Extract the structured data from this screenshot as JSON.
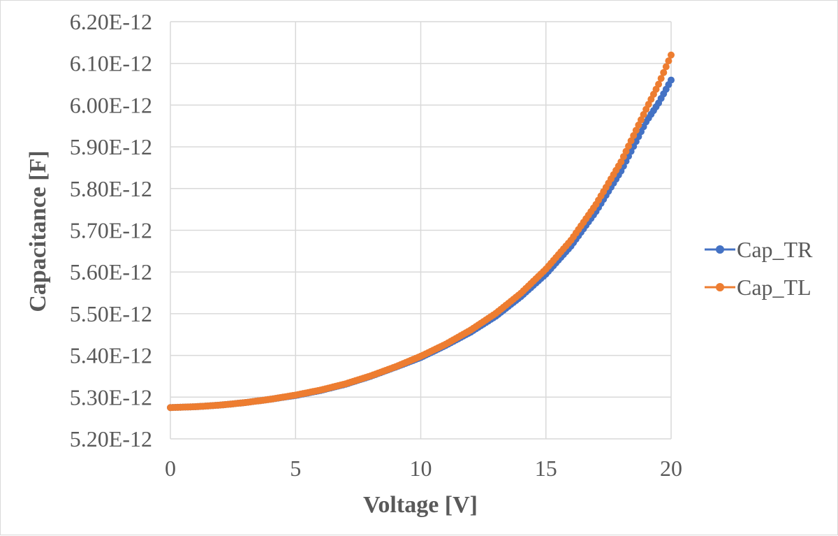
{
  "chart_data": {
    "type": "scatter",
    "title": "",
    "xlabel": "Voltage [V]",
    "ylabel": "Capacitance [F]",
    "xlim": [
      0,
      20
    ],
    "ylim": [
      5.2e-12,
      6.2e-12
    ],
    "grid": true,
    "legend_position": "right",
    "x_ticks": [
      {
        "value": 0,
        "label": "0"
      },
      {
        "value": 5,
        "label": "5"
      },
      {
        "value": 10,
        "label": "10"
      },
      {
        "value": 15,
        "label": "15"
      },
      {
        "value": 20,
        "label": "20"
      }
    ],
    "y_ticks": [
      {
        "value": 5.2e-12,
        "label": "5.20E-12"
      },
      {
        "value": 5.3e-12,
        "label": "5.30E-12"
      },
      {
        "value": 5.4e-12,
        "label": "5.40E-12"
      },
      {
        "value": 5.5e-12,
        "label": "5.50E-12"
      },
      {
        "value": 5.6e-12,
        "label": "5.60E-12"
      },
      {
        "value": 5.7e-12,
        "label": "5.70E-12"
      },
      {
        "value": 5.8e-12,
        "label": "5.80E-12"
      },
      {
        "value": 5.9e-12,
        "label": "5.90E-12"
      },
      {
        "value": 6e-12,
        "label": "6.00E-12"
      },
      {
        "value": 6.1e-12,
        "label": "6.10E-12"
      },
      {
        "value": 6.2e-12,
        "label": "6.20E-12"
      }
    ],
    "series": [
      {
        "name": "Cap_TR",
        "color": "#4472C4",
        "x": [
          0,
          1,
          2,
          3,
          4,
          5,
          6,
          7,
          8,
          9,
          10,
          11,
          12,
          13,
          14,
          15,
          16,
          17,
          18,
          19,
          19.5,
          20
        ],
        "y": [
          5.275e-12,
          5.277e-12,
          5.281e-12,
          5.287e-12,
          5.295e-12,
          5.304e-12,
          5.316e-12,
          5.331e-12,
          5.35e-12,
          5.372e-12,
          5.395e-12,
          5.424e-12,
          5.456e-12,
          5.494e-12,
          5.541e-12,
          5.595e-12,
          5.662e-12,
          5.745e-12,
          5.842e-12,
          5.96e-12,
          6.005e-12,
          6.06e-12
        ]
      },
      {
        "name": "Cap_TL",
        "color": "#ED7D31",
        "x": [
          0,
          1,
          2,
          3,
          4,
          5,
          6,
          7,
          8,
          9,
          10,
          11,
          12,
          13,
          14,
          15,
          16,
          17,
          18,
          19,
          19.5,
          20
        ],
        "y": [
          5.275e-12,
          5.277e-12,
          5.281e-12,
          5.287e-12,
          5.295e-12,
          5.305e-12,
          5.317e-12,
          5.332e-12,
          5.351e-12,
          5.373e-12,
          5.398e-12,
          5.427e-12,
          5.461e-12,
          5.501e-12,
          5.549e-12,
          5.607e-12,
          5.676e-12,
          5.762e-12,
          5.864e-12,
          5.99e-12,
          6.05e-12,
          6.12e-12
        ]
      }
    ]
  }
}
